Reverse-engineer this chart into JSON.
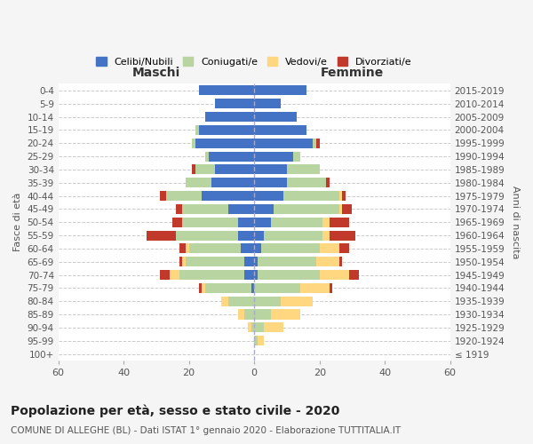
{
  "age_groups": [
    "100+",
    "95-99",
    "90-94",
    "85-89",
    "80-84",
    "75-79",
    "70-74",
    "65-69",
    "60-64",
    "55-59",
    "50-54",
    "45-49",
    "40-44",
    "35-39",
    "30-34",
    "25-29",
    "20-24",
    "15-19",
    "10-14",
    "5-9",
    "0-4"
  ],
  "birth_years": [
    "≤ 1919",
    "1920-1924",
    "1925-1929",
    "1930-1934",
    "1935-1939",
    "1940-1944",
    "1945-1949",
    "1950-1954",
    "1955-1959",
    "1960-1964",
    "1965-1969",
    "1970-1974",
    "1975-1979",
    "1980-1984",
    "1985-1989",
    "1990-1994",
    "1995-1999",
    "2000-2004",
    "2005-2009",
    "2010-2014",
    "2015-2019"
  ],
  "colors": {
    "celibe": "#4472c4",
    "coniugato": "#b8d4a0",
    "vedovo": "#ffd780",
    "divorziato": "#c0392b"
  },
  "maschi": {
    "celibe": [
      0,
      0,
      0,
      0,
      0,
      1,
      3,
      3,
      4,
      5,
      5,
      8,
      16,
      13,
      12,
      14,
      18,
      17,
      15,
      12,
      17
    ],
    "coniugato": [
      0,
      0,
      1,
      3,
      8,
      14,
      20,
      18,
      16,
      19,
      17,
      14,
      11,
      8,
      6,
      1,
      1,
      1,
      0,
      0,
      0
    ],
    "vedovo": [
      0,
      0,
      1,
      2,
      2,
      1,
      3,
      1,
      1,
      0,
      0,
      0,
      0,
      0,
      0,
      0,
      0,
      0,
      0,
      0,
      0
    ],
    "divorziato": [
      0,
      0,
      0,
      0,
      0,
      1,
      3,
      1,
      2,
      9,
      3,
      2,
      2,
      0,
      1,
      0,
      0,
      0,
      0,
      0,
      0
    ]
  },
  "femmine": {
    "nubile": [
      0,
      0,
      0,
      0,
      0,
      0,
      1,
      1,
      2,
      3,
      5,
      6,
      9,
      10,
      10,
      12,
      18,
      16,
      13,
      8,
      16
    ],
    "coniugata": [
      0,
      1,
      3,
      5,
      8,
      14,
      19,
      18,
      18,
      18,
      16,
      20,
      17,
      12,
      10,
      2,
      1,
      0,
      0,
      0,
      0
    ],
    "vedova": [
      0,
      2,
      6,
      9,
      10,
      9,
      9,
      7,
      6,
      2,
      2,
      1,
      1,
      0,
      0,
      0,
      0,
      0,
      0,
      0,
      0
    ],
    "divorziata": [
      0,
      0,
      0,
      0,
      0,
      1,
      3,
      1,
      3,
      8,
      6,
      3,
      1,
      1,
      0,
      0,
      1,
      0,
      0,
      0,
      0
    ]
  },
  "xlim": 60,
  "title": "Popolazione per età, sesso e stato civile - 2020",
  "subtitle": "COMUNE DI ALLEGHE (BL) - Dati ISTAT 1° gennaio 2020 - Elaborazione TUTTITALIA.IT",
  "xlabel_left": "Maschi",
  "xlabel_right": "Femmine",
  "ylabel_left": "Fasce di età",
  "ylabel_right": "Anni di nascita",
  "legend_labels": [
    "Celibi/Nubili",
    "Coniugati/e",
    "Vedovi/e",
    "Divorziati/e"
  ],
  "bg_color": "#f5f5f5",
  "plot_bg": "#ffffff"
}
